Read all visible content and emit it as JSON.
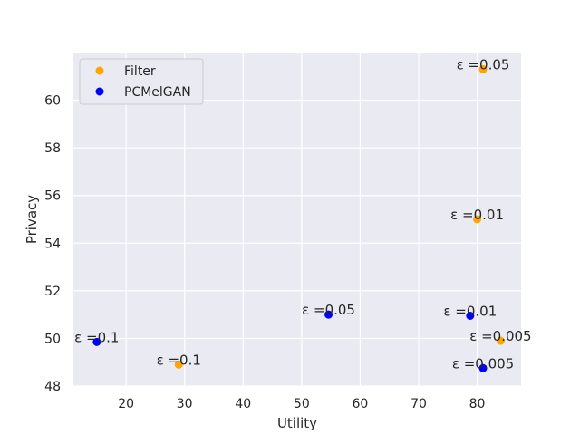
{
  "chart_data": {
    "type": "scatter",
    "title": "",
    "xlabel": "Utility",
    "ylabel": "Privacy",
    "xlim": [
      11,
      87.5
    ],
    "ylim": [
      48,
      62
    ],
    "xticks": [
      20,
      30,
      40,
      50,
      60,
      70,
      80
    ],
    "yticks": [
      48,
      50,
      52,
      54,
      56,
      58,
      60
    ],
    "grid": true,
    "legend_position": "top-left",
    "series": [
      {
        "name": "Filter",
        "color": "#ffa500",
        "points": [
          {
            "x": 81,
            "y": 61.3,
            "label": "ε =0.05"
          },
          {
            "x": 80,
            "y": 55.0,
            "label": "ε =0.01"
          },
          {
            "x": 84,
            "y": 49.9,
            "label": "ε =0.005"
          },
          {
            "x": 29,
            "y": 48.9,
            "label": "ε =0.1"
          }
        ]
      },
      {
        "name": "PCMelGAN",
        "color": "#0000ff",
        "points": [
          {
            "x": 54.6,
            "y": 51.0,
            "label": "ε =0.05"
          },
          {
            "x": 78.8,
            "y": 50.95,
            "label": "ε =0.01"
          },
          {
            "x": 15,
            "y": 49.85,
            "label": "ε =0.1"
          },
          {
            "x": 81,
            "y": 48.75,
            "label": "ε =0.005"
          }
        ]
      }
    ]
  }
}
